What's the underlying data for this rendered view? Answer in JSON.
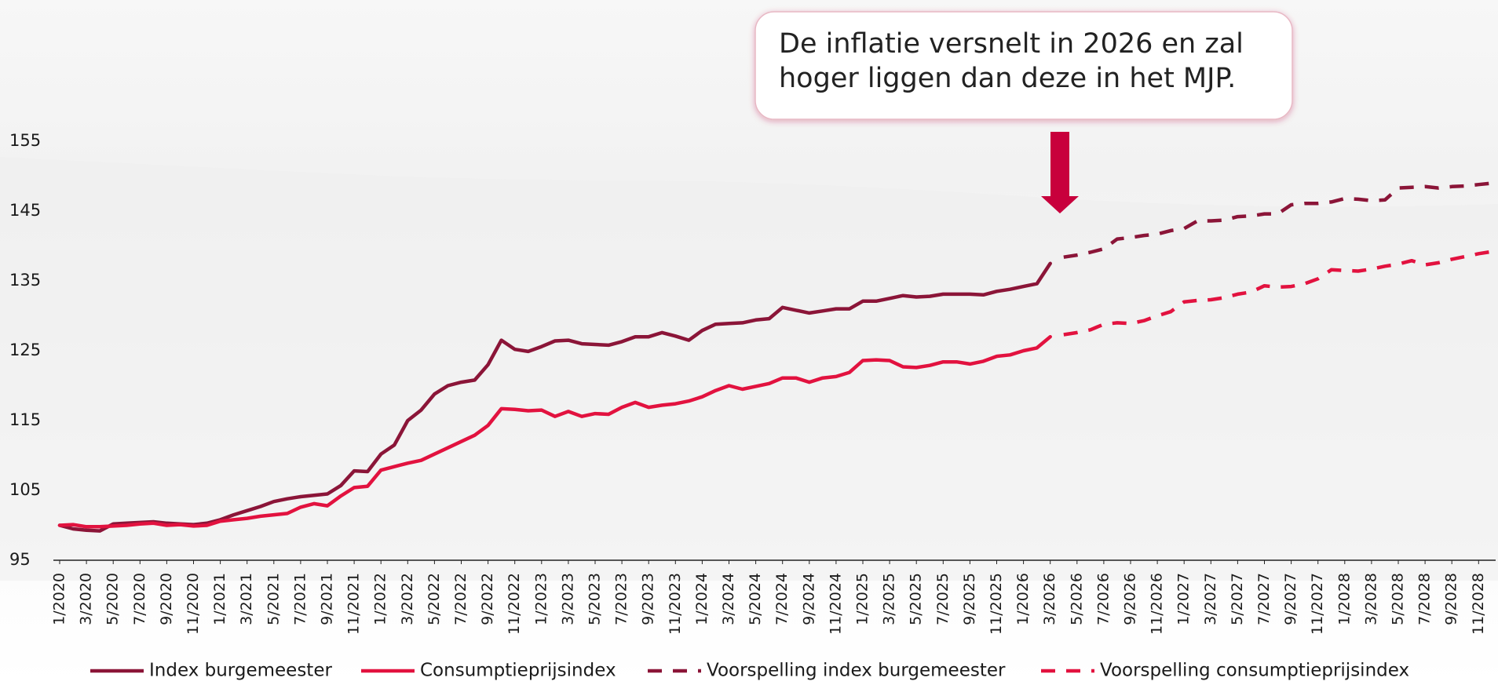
{
  "chart_data": {
    "type": "line",
    "annotation": [
      "De inflatie versnelt in 2026 en zal",
      "hoger liggen dan deze in het MJP."
    ],
    "categories": [
      "1/2020",
      null,
      "3/2020",
      null,
      "5/2020",
      null,
      "7/2020",
      null,
      "9/2020",
      null,
      "11/2020",
      null,
      "1/2021",
      null,
      "3/2021",
      null,
      "5/2021",
      null,
      "7/2021",
      null,
      "9/2021",
      null,
      "11/2021",
      null,
      "1/2022",
      null,
      "3/2022",
      null,
      "5/2022",
      null,
      "7/2022",
      null,
      "9/2022",
      null,
      "11/2022",
      null,
      "1/2023",
      null,
      "3/2023",
      null,
      "5/2023",
      null,
      "7/2023",
      null,
      "9/2023",
      null,
      "11/2023",
      null,
      "1/2024",
      null,
      "3/2024",
      null,
      "5/2024",
      null,
      "7/2024",
      null,
      "9/2024",
      null,
      "11/2024",
      null,
      "1/2025",
      null,
      "3/2025",
      null,
      "5/2025",
      null,
      "7/2025",
      null,
      "9/2025",
      null,
      "11/2025",
      null,
      "1/2026",
      null,
      "3/2026",
      null,
      "5/2026",
      null,
      "7/2026",
      null,
      "9/2026",
      null,
      "11/2026",
      null,
      "1/2027",
      null,
      "3/2027",
      null,
      "5/2027",
      null,
      "7/2027",
      null,
      "9/2027",
      null,
      "11/2027",
      null,
      "1/2028",
      null,
      "3/2028",
      null,
      "5/2028",
      null,
      "7/2028",
      null,
      "9/2028",
      null,
      "11/2028",
      null
    ],
    "ylim": [
      95,
      155
    ],
    "yticks": [
      95,
      105,
      115,
      125,
      135,
      145,
      155
    ],
    "grid": false,
    "legend": "bottom",
    "series": [
      {
        "name": "Index burgemeester",
        "color": "#8b1538",
        "dashed": false,
        "values": [
          100,
          99.5,
          99.3,
          99.2,
          100.2,
          100.3,
          100.4,
          100.5,
          100.3,
          100.2,
          100.1,
          100.3,
          100.8,
          101.5,
          102.1,
          102.7,
          103.4,
          103.8,
          104.1,
          104.3,
          104.5,
          105.7,
          107.8,
          107.7,
          110.2,
          111.5,
          115,
          116.5,
          118.8,
          120,
          120.5,
          120.8,
          123,
          126.5,
          125.2,
          124.9,
          125.6,
          126.4,
          126.5,
          126,
          125.9,
          125.8,
          126.3,
          127,
          127,
          127.6,
          127.1,
          126.5,
          127.9,
          128.8,
          128.9,
          129,
          129.4,
          129.6,
          131.2,
          130.8,
          130.4,
          130.7,
          131,
          131,
          132.1,
          132.1,
          132.5,
          132.9,
          132.7,
          132.8,
          133.1,
          133.1,
          133.1,
          133,
          133.5,
          133.8,
          134.2,
          134.6,
          137.5,
          null,
          null,
          null,
          null,
          null,
          null,
          null,
          null,
          null,
          null,
          null,
          null,
          null,
          null,
          null,
          null,
          null,
          null,
          null,
          null,
          null,
          null,
          null,
          null,
          null,
          null,
          null,
          null,
          null,
          null,
          null,
          null,
          null
        ]
      },
      {
        "name": "Consumptieprijsindex",
        "color": "#e2123f",
        "dashed": false,
        "values": [
          100,
          100.1,
          99.8,
          99.8,
          99.9,
          100,
          100.2,
          100.3,
          100,
          100.1,
          99.9,
          100,
          100.6,
          100.8,
          101,
          101.3,
          101.5,
          101.7,
          102.6,
          103.1,
          102.8,
          104.2,
          105.4,
          105.6,
          107.9,
          108.4,
          108.9,
          109.3,
          110.2,
          111.1,
          112,
          112.9,
          114.3,
          116.7,
          116.6,
          116.4,
          116.5,
          115.6,
          116.3,
          115.6,
          116,
          115.9,
          116.9,
          117.6,
          116.9,
          117.2,
          117.4,
          117.8,
          118.4,
          119.3,
          120,
          119.5,
          119.9,
          120.3,
          121.1,
          121.1,
          120.5,
          121.1,
          121.3,
          121.9,
          123.6,
          123.7,
          123.6,
          122.7,
          122.6,
          122.9,
          123.4,
          123.4,
          123.1,
          123.5,
          124.2,
          124.4,
          125,
          125.4,
          127,
          null,
          null,
          null,
          null,
          null,
          null,
          null,
          null,
          null,
          null,
          null,
          null,
          null,
          null,
          null,
          null,
          null,
          null,
          null,
          null,
          null,
          null,
          null,
          null,
          null,
          null,
          null,
          null,
          null,
          null,
          null,
          null,
          null
        ]
      },
      {
        "name": "Voorspelling index burgemeester",
        "color": "#8b1538",
        "dashed": true,
        "values": [
          null,
          null,
          null,
          null,
          null,
          null,
          null,
          null,
          null,
          null,
          null,
          null,
          null,
          null,
          null,
          null,
          null,
          null,
          null,
          null,
          null,
          null,
          null,
          null,
          null,
          null,
          null,
          null,
          null,
          null,
          null,
          null,
          null,
          null,
          null,
          null,
          null,
          null,
          null,
          null,
          null,
          null,
          null,
          null,
          null,
          null,
          null,
          null,
          null,
          null,
          null,
          null,
          null,
          null,
          null,
          null,
          null,
          null,
          null,
          null,
          null,
          null,
          null,
          null,
          null,
          null,
          null,
          null,
          null,
          null,
          null,
          null,
          null,
          null,
          null,
          138.4,
          138.7,
          139.1,
          139.6,
          141,
          141.2,
          141.5,
          141.7,
          142.2,
          142.5,
          143.6,
          143.6,
          143.7,
          144.2,
          144.3,
          144.6,
          144.6,
          145.9,
          146.1,
          146.1,
          146.3,
          146.8,
          146.7,
          146.5,
          146.6,
          148.3,
          148.4,
          148.5,
          148.3,
          148.5,
          148.6,
          148.8,
          149
        ]
      },
      {
        "name": "Voorspelling consumptieprijsindex",
        "color": "#e2123f",
        "dashed": true,
        "values": [
          null,
          null,
          null,
          null,
          null,
          null,
          null,
          null,
          null,
          null,
          null,
          null,
          null,
          null,
          null,
          null,
          null,
          null,
          null,
          null,
          null,
          null,
          null,
          null,
          null,
          null,
          null,
          null,
          null,
          null,
          null,
          null,
          null,
          null,
          null,
          null,
          null,
          null,
          null,
          null,
          null,
          null,
          null,
          null,
          null,
          null,
          null,
          null,
          null,
          null,
          null,
          null,
          null,
          null,
          null,
          null,
          null,
          null,
          null,
          null,
          null,
          null,
          null,
          null,
          null,
          null,
          null,
          null,
          null,
          null,
          null,
          null,
          null,
          null,
          null,
          127.3,
          127.6,
          128,
          128.8,
          129,
          128.9,
          129.3,
          130,
          130.6,
          132,
          132.2,
          132.3,
          132.6,
          133.1,
          133.4,
          134.3,
          134.1,
          134.2,
          134.6,
          135.3,
          136.6,
          136.5,
          136.4,
          136.7,
          137.1,
          137.4,
          137.9,
          137.3,
          137.6,
          138.1,
          138.5,
          138.9,
          139.2
        ]
      }
    ]
  }
}
